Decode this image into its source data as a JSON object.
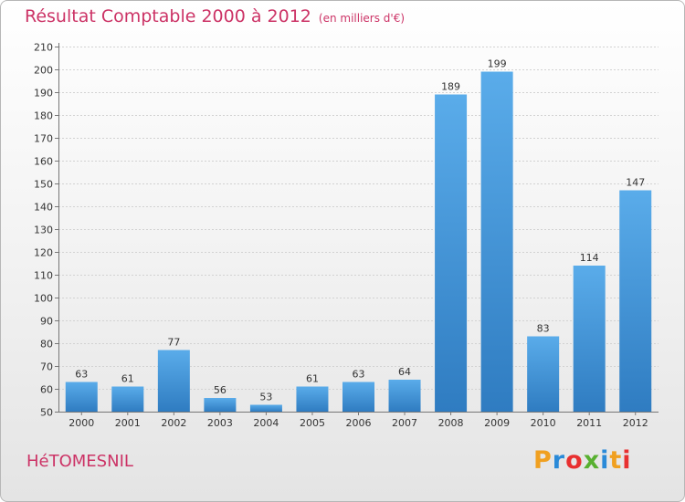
{
  "title": "Résultat Comptable 2000 à 2012",
  "unit": "(en milliers d'€)",
  "place": "HéTOMESNIL",
  "logo": {
    "letters": [
      {
        "char": "P",
        "color": "#f0a020"
      },
      {
        "char": "r",
        "color": "#2a8ad8"
      },
      {
        "char": "o",
        "color": "#e83030"
      },
      {
        "char": "x",
        "color": "#58b030"
      },
      {
        "char": "i",
        "color": "#2a8ad8"
      },
      {
        "char": "t",
        "color": "#f0a020"
      },
      {
        "char": "i",
        "color": "#e83030"
      }
    ]
  },
  "colors": {
    "title": "#cc3366",
    "bar_light": "#5aacea",
    "bar_dark": "#2f7cc1",
    "grid": "#d2d2d2",
    "axis": "#777777",
    "text": "#333333"
  },
  "chart_data": {
    "type": "bar",
    "title": "Résultat Comptable 2000 à 2012",
    "unit": "(en milliers d'€)",
    "categories": [
      "2000",
      "2001",
      "2002",
      "2003",
      "2004",
      "2005",
      "2006",
      "2007",
      "2008",
      "2009",
      "2010",
      "2011",
      "2012"
    ],
    "values": [
      63,
      61,
      77,
      56,
      53,
      61,
      63,
      64,
      189,
      199,
      83,
      114,
      147
    ],
    "ylim": [
      50,
      210
    ],
    "yticks": [
      50,
      60,
      70,
      80,
      90,
      100,
      110,
      120,
      130,
      140,
      150,
      160,
      170,
      180,
      190,
      200,
      210
    ],
    "grid": true,
    "legend": "none"
  }
}
